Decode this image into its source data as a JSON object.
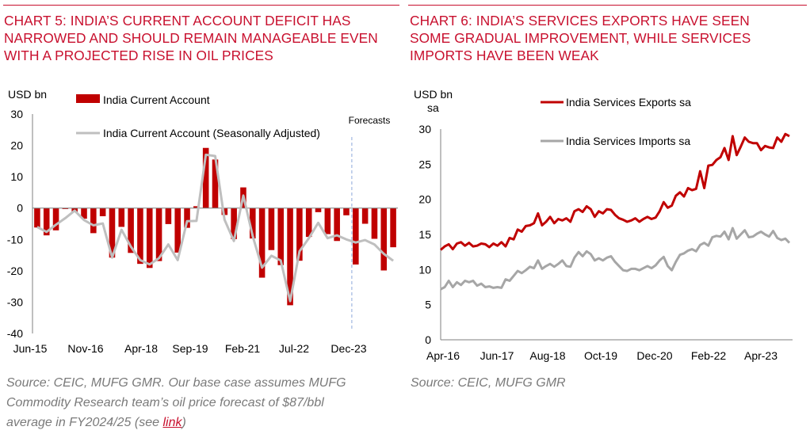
{
  "left": {
    "title_lines": [
      "CHART 5: INDIA’S CURRENT ACCOUNT DEFICIT HAS",
      "NARROWED AND SHOULD REMAIN MANAGEABLE EVEN",
      "WITH A PROJECTED RISE IN OIL PRICES"
    ],
    "source_lines": [
      "Source: CEIC, MUFG GMR. Our base case assumes MUFG",
      "Commodity Research team’s oil price forecast of $87/bbl"
    ],
    "source_last_prefix": "average in FY2024/25 (see ",
    "source_link": "link",
    "source_last_suffix": ")"
  },
  "right": {
    "title_lines": [
      "CHART 6: INDIA’S SERVICES EXPORTS HAVE SEEN",
      "SOME GRADUAL IMPROVEMENT, WHILE SERVICES",
      "IMPORTS HAVE BEEN WEAK"
    ],
    "source_lines": [
      "Source: CEIC, MUFG GMR"
    ]
  },
  "colors": {
    "accent": "#c8102e",
    "bar": "#c00000",
    "grey_line": "#bfbfbf",
    "import_line": "#a6a6a6",
    "forecast_line": "#8ea9db",
    "source_text": "#7a7a7a"
  },
  "chart_data": [
    {
      "type": "bar",
      "unit_label": "USD bn",
      "xticks": [
        "Jun-15",
        "Nov-16",
        "Apr-18",
        "Sep-19",
        "Feb-21",
        "Jul-22",
        "Dec-23"
      ],
      "ylim": [
        -40,
        30
      ],
      "yticks": [
        -40,
        -30,
        -20,
        -10,
        0,
        10,
        20,
        30
      ],
      "annotation": "Forecasts",
      "forecast_start_index": 34,
      "legend_position": "top-left",
      "series": [
        {
          "name": "India Current Account",
          "kind": "bar",
          "values": [
            -6.2,
            -8.7,
            -7.1,
            -0.3,
            -1.2,
            -3.4,
            -8.0,
            -2.6,
            -15.8,
            -6.0,
            -14.3,
            -17.8,
            -19.1,
            -16.9,
            -5.1,
            -14.2,
            -6.3,
            0.6,
            19.2,
            15.5,
            -2.2,
            -9.9,
            6.6,
            -9.7,
            -22.2,
            -13.4,
            -18.2,
            -31.0,
            -16.8,
            -9.2,
            -1.3,
            -8.3,
            -10.5,
            -2.3,
            -18.0,
            -5.0,
            -9.8,
            -19.9,
            -12.5
          ]
        },
        {
          "name": "India Current Account (Seasonally Adjusted)",
          "kind": "line",
          "values": [
            -6.0,
            -7.6,
            -5.3,
            -3.2,
            -0.8,
            -3.8,
            -5.5,
            -4.9,
            -15.8,
            -6.9,
            -12.3,
            -16.6,
            -18.0,
            -16.0,
            -11.6,
            -16.6,
            -4.2,
            -4.1,
            17.0,
            16.6,
            -3.7,
            -10.5,
            4.0,
            -8.9,
            -19.0,
            -15.2,
            -16.7,
            -29.7,
            -13.8,
            -9.6,
            -4.7,
            -9.6,
            -8.7,
            -10.0,
            -11.0,
            -10.2,
            -11.6,
            -14.6,
            -16.8
          ]
        }
      ]
    },
    {
      "type": "line",
      "unit_label": "USD bn sa",
      "xticks": [
        "Apr-16",
        "Jun-17",
        "Aug-18",
        "Oct-19",
        "Dec-20",
        "Feb-22",
        "Apr-23"
      ],
      "ylim": [
        0,
        30
      ],
      "yticks": [
        0,
        5,
        10,
        15,
        20,
        25,
        30
      ],
      "legend_position": "top-right",
      "series": [
        {
          "name": "India Services Exports sa",
          "values": [
            12.8,
            13.3,
            13.6,
            12.9,
            13.7,
            13.9,
            13.4,
            13.8,
            13.3,
            13.4,
            13.7,
            13.6,
            13.2,
            13.7,
            13.4,
            13.9,
            13.3,
            14.5,
            14.3,
            15.7,
            15.4,
            16.2,
            16.3,
            16.6,
            18.0,
            16.3,
            16.8,
            17.5,
            16.6,
            17.2,
            17.0,
            17.3,
            16.8,
            18.3,
            18.6,
            18.2,
            19.0,
            18.6,
            17.5,
            18.3,
            18.0,
            18.6,
            18.5,
            17.8,
            17.3,
            17.1,
            16.8,
            17.0,
            17.3,
            16.8,
            17.2,
            17.5,
            17.2,
            17.4,
            18.3,
            19.6,
            18.8,
            19.1,
            20.5,
            21.0,
            20.4,
            21.6,
            21.3,
            21.5,
            24.0,
            21.6,
            24.8,
            24.9,
            25.6,
            26.0,
            27.3,
            25.6,
            29.0,
            26.3,
            27.5,
            28.8,
            28.2,
            28.0,
            28.0,
            27.0,
            27.6,
            27.4,
            27.3,
            28.8,
            28.2,
            29.3,
            29.0
          ]
        },
        {
          "name": "India Services Imports sa",
          "values": [
            7.2,
            7.5,
            8.4,
            7.5,
            8.2,
            7.8,
            8.4,
            8.2,
            8.4,
            7.7,
            8.0,
            7.5,
            7.6,
            7.4,
            7.5,
            7.4,
            8.6,
            8.4,
            9.1,
            9.8,
            9.5,
            9.9,
            10.4,
            10.2,
            11.3,
            10.1,
            10.5,
            10.8,
            10.4,
            10.8,
            11.3,
            10.5,
            10.4,
            11.7,
            12.5,
            11.9,
            12.6,
            12.2,
            11.3,
            11.6,
            11.3,
            11.7,
            11.9,
            11.1,
            10.5,
            9.9,
            9.8,
            10.1,
            10.1,
            9.9,
            10.2,
            10.5,
            10.2,
            10.6,
            11.3,
            11.8,
            10.5,
            9.9,
            11.1,
            12.1,
            12.3,
            12.7,
            12.9,
            12.6,
            13.5,
            13.8,
            13.4,
            14.6,
            14.8,
            14.7,
            15.4,
            14.3,
            15.9,
            14.4,
            15.0,
            15.6,
            14.6,
            14.7,
            15.1,
            15.4,
            15.0,
            14.7,
            15.5,
            14.5,
            14.2,
            14.4,
            13.8
          ]
        }
      ]
    }
  ]
}
